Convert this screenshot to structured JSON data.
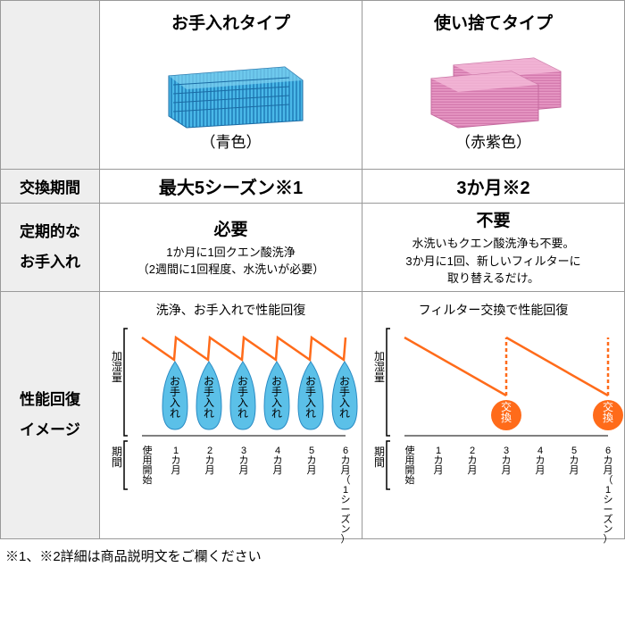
{
  "headers": {
    "type1": "お手入れタイプ",
    "type2": "使い捨てタイプ"
  },
  "colors": {
    "label1": "（青色）",
    "label2": "（赤紫色）",
    "filter1": "#4ab8e8",
    "filter2": "#e89ac5",
    "orange": "#ff6b1a",
    "blue_drop": "#5bc0e8",
    "gray": "#888"
  },
  "rows": {
    "exchange": {
      "label": "交換期間",
      "v1": "最大5シーズン※1",
      "v2": "3か月※2"
    },
    "maintenance": {
      "label": "定期的な\nお手入れ",
      "v1_head": "必要",
      "v1_line1": "1か月に1回クエン酸洗浄",
      "v1_line2": "（2週間に1回程度、水洗いが必要）",
      "v2_head": "不要",
      "v2_line1": "水洗いもクエン酸洗浄も不要。",
      "v2_line2": "3か月に1回、新しいフィルターに",
      "v2_line3": "取り替えるだけ。"
    },
    "perf": {
      "label": "性能回復\nイメージ",
      "title1": "洗浄、お手入れで性能回復",
      "title2": "フィルター交換で性能回復"
    }
  },
  "chart": {
    "ylabel": "加湿量",
    "xlabel_start": "使用開始",
    "xlabel_period": "期間",
    "months": [
      "1カ月",
      "2カ月",
      "3カ月",
      "4カ月",
      "5カ月",
      "6カ月（1シーズン）"
    ],
    "drop_label": "お手入れ",
    "exchange_label": "交換",
    "sawtooth_high": 10,
    "sawtooth_low": 35,
    "decline_points": 6
  },
  "footnote": "※1、※2詳細は商品説明文をご欄ください"
}
